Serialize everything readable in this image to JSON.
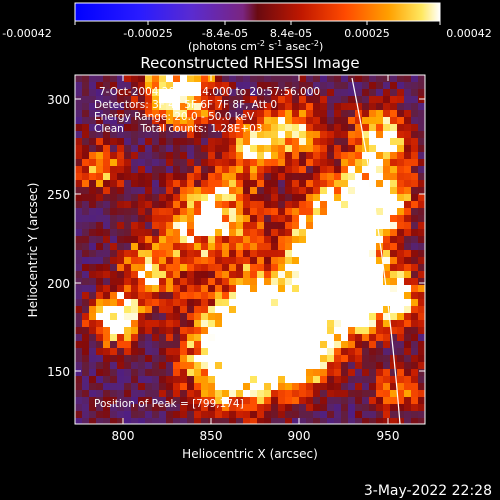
{
  "colorbar": {
    "ticks": [
      "-0.00042",
      "-0.00025",
      "-8.4e-05",
      "8.4e-05",
      "0.00025",
      "0.00042"
    ],
    "units_main": "(photons cm",
    "units_exp1": "-2",
    "units_mid": " s",
    "units_exp2": "-1",
    "units_mid2": " asec",
    "units_exp3": "-2",
    "units_end": ")"
  },
  "title": "Reconstructed RHESSI Image",
  "info": {
    "time": "7-Oct-2004 20:56:24.000 to 20:57:56.000",
    "detectors": "Detectors: 3F 4F 5F 6F 7F 8F, Att 0",
    "energy": "Energy Range: 20.0 - 50.0 keV",
    "clean": "Clean     Total counts: 1.28E+03",
    "peak": "Position of Peak = [799,174]"
  },
  "axes": {
    "xlabel": "Heliocentric X (arcsec)",
    "ylabel": "Heliocentric Y (arcsec)",
    "xticks": [
      "800",
      "850",
      "900",
      "950"
    ],
    "yticks": [
      "150",
      "200",
      "250",
      "300"
    ]
  },
  "footer_date": "3-May-2022 22:28",
  "colors": {
    "background": "#000000",
    "limb": "#ffffff",
    "text": "#ffffff"
  }
}
